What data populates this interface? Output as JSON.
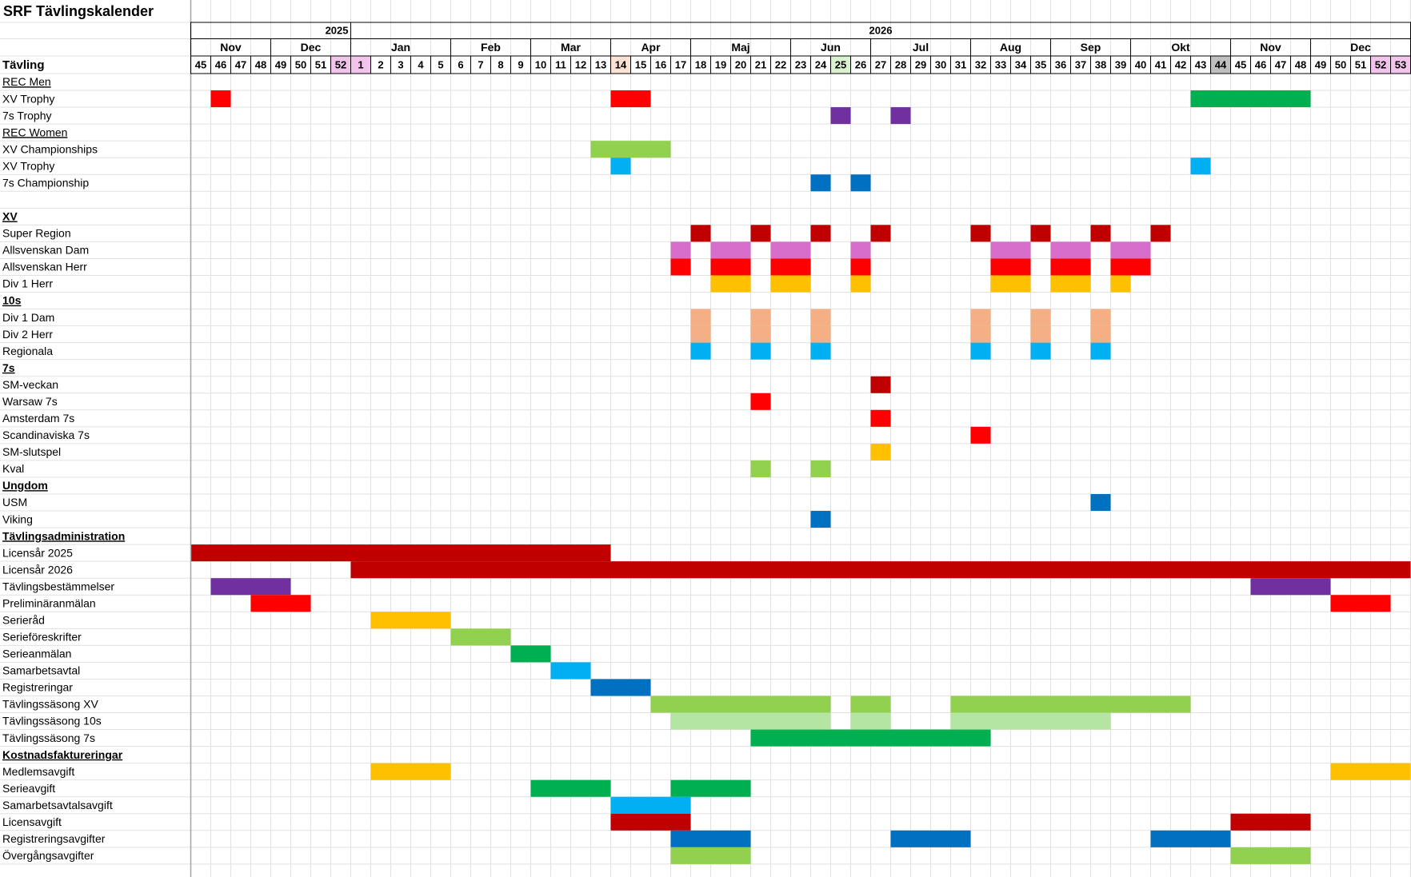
{
  "title": "SRF Tävlingskalender",
  "header_label": "Tävling",
  "years": [
    {
      "label": "2025",
      "span": 8,
      "align": "right"
    },
    {
      "label": "2026",
      "span": 53,
      "align": "center"
    }
  ],
  "months": [
    {
      "label": "Nov",
      "span": 4
    },
    {
      "label": "Dec",
      "span": 4
    },
    {
      "label": "Jan",
      "span": 5
    },
    {
      "label": "Feb",
      "span": 4
    },
    {
      "label": "Mar",
      "span": 4
    },
    {
      "label": "Apr",
      "span": 4
    },
    {
      "label": "Maj",
      "span": 5
    },
    {
      "label": "Jun",
      "span": 4
    },
    {
      "label": "Jul",
      "span": 5
    },
    {
      "label": "Aug",
      "span": 4
    },
    {
      "label": "Sep",
      "span": 4
    },
    {
      "label": "Okt",
      "span": 5
    },
    {
      "label": "Nov",
      "span": 4
    },
    {
      "label": "Dec",
      "span": 5
    }
  ],
  "weeks": [
    45,
    46,
    47,
    48,
    49,
    50,
    51,
    52,
    1,
    2,
    3,
    4,
    5,
    6,
    7,
    8,
    9,
    10,
    11,
    12,
    13,
    14,
    15,
    16,
    17,
    18,
    19,
    20,
    21,
    22,
    23,
    24,
    25,
    26,
    27,
    28,
    29,
    30,
    31,
    32,
    33,
    34,
    35,
    36,
    37,
    38,
    39,
    40,
    41,
    42,
    43,
    44,
    45,
    46,
    47,
    48,
    49,
    50,
    51,
    52,
    53
  ],
  "week_highlights": [
    {
      "index": 7,
      "color": "#f2c4ec"
    },
    {
      "index": 8,
      "color": "#f2c4ec"
    },
    {
      "index": 21,
      "color": "#fbe2d5"
    },
    {
      "index": 32,
      "color": "#daf2d0"
    },
    {
      "index": 51,
      "color": "#bfbfbf"
    },
    {
      "index": 59,
      "color": "#f2c4ec"
    },
    {
      "index": 60,
      "color": "#f2c4ec"
    }
  ],
  "rows": [
    {
      "label": "REC Men",
      "style": "link"
    },
    {
      "label": "XV Trophy",
      "bars": [
        {
          "from": 1,
          "to": 1,
          "color": "#ff0000"
        },
        {
          "from": 21,
          "to": 22,
          "color": "#ff0000"
        },
        {
          "from": 50,
          "to": 55,
          "color": "#00b050"
        }
      ]
    },
    {
      "label": "7s Trophy",
      "bars": [
        {
          "from": 32,
          "to": 32,
          "color": "#7030a0"
        },
        {
          "from": 35,
          "to": 35,
          "color": "#7030a0"
        }
      ]
    },
    {
      "label": "REC Women",
      "style": "link"
    },
    {
      "label": "XV Championships",
      "bars": [
        {
          "from": 20,
          "to": 23,
          "color": "#92d050"
        }
      ]
    },
    {
      "label": "XV Trophy",
      "bars": [
        {
          "from": 21,
          "to": 21,
          "color": "#00b0f0"
        },
        {
          "from": 50,
          "to": 50,
          "color": "#00b0f0"
        }
      ]
    },
    {
      "label": "7s Championship",
      "bars": [
        {
          "from": 31,
          "to": 31,
          "color": "#0070c0"
        },
        {
          "from": 33,
          "to": 33,
          "color": "#0070c0"
        }
      ]
    },
    {},
    {
      "label": "XV",
      "style": "section"
    },
    {
      "label": "Super Region",
      "bars": [
        {
          "from": 25,
          "to": 25,
          "color": "#c00000"
        },
        {
          "from": 28,
          "to": 28,
          "color": "#c00000"
        },
        {
          "from": 31,
          "to": 31,
          "color": "#c00000"
        },
        {
          "from": 34,
          "to": 34,
          "color": "#c00000"
        },
        {
          "from": 39,
          "to": 39,
          "color": "#c00000"
        },
        {
          "from": 42,
          "to": 42,
          "color": "#c00000"
        },
        {
          "from": 45,
          "to": 45,
          "color": "#c00000"
        },
        {
          "from": 48,
          "to": 48,
          "color": "#c00000"
        }
      ]
    },
    {
      "label": "Allsvenskan Dam",
      "bars": [
        {
          "from": 24,
          "to": 24,
          "color": "#d86ecc"
        },
        {
          "from": 26,
          "to": 27,
          "color": "#d86ecc"
        },
        {
          "from": 29,
          "to": 30,
          "color": "#d86ecc"
        },
        {
          "from": 33,
          "to": 33,
          "color": "#d86ecc"
        },
        {
          "from": 40,
          "to": 41,
          "color": "#d86ecc"
        },
        {
          "from": 43,
          "to": 44,
          "color": "#d86ecc"
        },
        {
          "from": 46,
          "to": 47,
          "color": "#d86ecc"
        }
      ]
    },
    {
      "label": "Allsvenskan Herr",
      "bars": [
        {
          "from": 24,
          "to": 24,
          "color": "#ff0000"
        },
        {
          "from": 26,
          "to": 27,
          "color": "#ff0000"
        },
        {
          "from": 29,
          "to": 30,
          "color": "#ff0000"
        },
        {
          "from": 33,
          "to": 33,
          "color": "#ff0000"
        },
        {
          "from": 40,
          "to": 41,
          "color": "#ff0000"
        },
        {
          "from": 43,
          "to": 44,
          "color": "#ff0000"
        },
        {
          "from": 46,
          "to": 47,
          "color": "#ff0000"
        }
      ]
    },
    {
      "label": "Div 1 Herr",
      "bars": [
        {
          "from": 26,
          "to": 27,
          "color": "#ffc000"
        },
        {
          "from": 29,
          "to": 30,
          "color": "#ffc000"
        },
        {
          "from": 33,
          "to": 33,
          "color": "#ffc000"
        },
        {
          "from": 40,
          "to": 41,
          "color": "#ffc000"
        },
        {
          "from": 43,
          "to": 44,
          "color": "#ffc000"
        },
        {
          "from": 46,
          "to": 46,
          "color": "#ffc000"
        }
      ]
    },
    {
      "label": "10s",
      "style": "section"
    },
    {
      "label": "Div 1 Dam",
      "bars": [
        {
          "from": 25,
          "to": 25,
          "color": "#f4b084"
        },
        {
          "from": 28,
          "to": 28,
          "color": "#f4b084"
        },
        {
          "from": 31,
          "to": 31,
          "color": "#f4b084"
        },
        {
          "from": 39,
          "to": 39,
          "color": "#f4b084"
        },
        {
          "from": 42,
          "to": 42,
          "color": "#f4b084"
        },
        {
          "from": 45,
          "to": 45,
          "color": "#f4b084"
        }
      ]
    },
    {
      "label": "Div 2 Herr",
      "bars": [
        {
          "from": 25,
          "to": 25,
          "color": "#f4b084"
        },
        {
          "from": 28,
          "to": 28,
          "color": "#f4b084"
        },
        {
          "from": 31,
          "to": 31,
          "color": "#f4b084"
        },
        {
          "from": 39,
          "to": 39,
          "color": "#f4b084"
        },
        {
          "from": 42,
          "to": 42,
          "color": "#f4b084"
        },
        {
          "from": 45,
          "to": 45,
          "color": "#f4b084"
        }
      ]
    },
    {
      "label": "Regionala",
      "bars": [
        {
          "from": 25,
          "to": 25,
          "color": "#00b0f0"
        },
        {
          "from": 28,
          "to": 28,
          "color": "#00b0f0"
        },
        {
          "from": 31,
          "to": 31,
          "color": "#00b0f0"
        },
        {
          "from": 39,
          "to": 39,
          "color": "#00b0f0"
        },
        {
          "from": 42,
          "to": 42,
          "color": "#00b0f0"
        },
        {
          "from": 45,
          "to": 45,
          "color": "#00b0f0"
        }
      ]
    },
    {
      "label": "7s",
      "style": "section"
    },
    {
      "label": "SM-veckan",
      "bars": [
        {
          "from": 34,
          "to": 34,
          "color": "#c00000"
        }
      ]
    },
    {
      "label": "Warsaw 7s",
      "bars": [
        {
          "from": 28,
          "to": 28,
          "color": "#ff0000"
        }
      ]
    },
    {
      "label": "Amsterdam 7s",
      "bars": [
        {
          "from": 34,
          "to": 34,
          "color": "#ff0000"
        }
      ]
    },
    {
      "label": "Scandinaviska 7s",
      "bars": [
        {
          "from": 39,
          "to": 39,
          "color": "#ff0000"
        }
      ]
    },
    {
      "label": "SM-slutspel",
      "bars": [
        {
          "from": 34,
          "to": 34,
          "color": "#ffc000"
        }
      ]
    },
    {
      "label": "Kval",
      "bars": [
        {
          "from": 28,
          "to": 28,
          "color": "#92d050"
        },
        {
          "from": 31,
          "to": 31,
          "color": "#92d050"
        }
      ]
    },
    {
      "label": "Ungdom",
      "style": "section"
    },
    {
      "label": "USM",
      "bars": [
        {
          "from": 45,
          "to": 45,
          "color": "#0070c0"
        }
      ]
    },
    {
      "label": "Viking",
      "bars": [
        {
          "from": 31,
          "to": 31,
          "color": "#0070c0"
        }
      ]
    },
    {
      "label": "Tävlingsadministration",
      "style": "section"
    },
    {
      "label": "Licensår 2025",
      "bars": [
        {
          "from": 0,
          "to": 20,
          "color": "#c00000"
        }
      ]
    },
    {
      "label": "Licensår 2026",
      "bars": [
        {
          "from": 8,
          "to": 60,
          "color": "#c00000"
        }
      ]
    },
    {
      "label": "Tävlingsbestämmelser",
      "bars": [
        {
          "from": 1,
          "to": 4,
          "color": "#7030a0"
        },
        {
          "from": 53,
          "to": 56,
          "color": "#7030a0"
        }
      ]
    },
    {
      "label": "Preliminäranmälan",
      "bars": [
        {
          "from": 3,
          "to": 5,
          "color": "#ff0000"
        },
        {
          "from": 57,
          "to": 59,
          "color": "#ff0000"
        }
      ]
    },
    {
      "label": "Serieråd",
      "bars": [
        {
          "from": 9,
          "to": 12,
          "color": "#ffc000"
        }
      ]
    },
    {
      "label": "Serieföreskrifter",
      "bars": [
        {
          "from": 13,
          "to": 15,
          "color": "#92d050"
        }
      ]
    },
    {
      "label": "Serieanmälan",
      "bars": [
        {
          "from": 16,
          "to": 17,
          "color": "#00b050"
        }
      ]
    },
    {
      "label": "Samarbetsavtal",
      "bars": [
        {
          "from": 18,
          "to": 19,
          "color": "#00b0f0"
        }
      ]
    },
    {
      "label": "Registreringar",
      "bars": [
        {
          "from": 20,
          "to": 22,
          "color": "#0070c0"
        }
      ]
    },
    {
      "label": "Tävlingssäsong XV",
      "bars": [
        {
          "from": 23,
          "to": 31,
          "color": "#92d050"
        },
        {
          "from": 33,
          "to": 34,
          "color": "#92d050"
        },
        {
          "from": 38,
          "to": 49,
          "color": "#92d050"
        }
      ]
    },
    {
      "label": "Tävlingssäsong 10s",
      "bars": [
        {
          "from": 24,
          "to": 31,
          "color": "#b4e5a2"
        },
        {
          "from": 33,
          "to": 34,
          "color": "#b4e5a2"
        },
        {
          "from": 38,
          "to": 45,
          "color": "#b4e5a2"
        }
      ]
    },
    {
      "label": "Tävlingssäsong 7s",
      "bars": [
        {
          "from": 28,
          "to": 39,
          "color": "#00b050"
        }
      ]
    },
    {
      "label": "Kostnadsfaktureringar",
      "style": "section"
    },
    {
      "label": "Medlemsavgift",
      "bars": [
        {
          "from": 9,
          "to": 12,
          "color": "#ffc000"
        },
        {
          "from": 57,
          "to": 60,
          "color": "#ffc000"
        }
      ]
    },
    {
      "label": "Serieavgift",
      "bars": [
        {
          "from": 17,
          "to": 20,
          "color": "#00b050"
        },
        {
          "from": 24,
          "to": 27,
          "color": "#00b050"
        }
      ]
    },
    {
      "label": "Samarbetsavtalsavgift",
      "bars": [
        {
          "from": 21,
          "to": 24,
          "color": "#00b0f0"
        }
      ]
    },
    {
      "label": "Licensavgift",
      "bars": [
        {
          "from": 21,
          "to": 24,
          "color": "#c00000"
        },
        {
          "from": 52,
          "to": 55,
          "color": "#c00000"
        }
      ]
    },
    {
      "label": "Registreringsavgifter",
      "bars": [
        {
          "from": 24,
          "to": 27,
          "color": "#0070c0"
        },
        {
          "from": 35,
          "to": 38,
          "color": "#0070c0"
        },
        {
          "from": 48,
          "to": 51,
          "color": "#0070c0"
        }
      ]
    },
    {
      "label": "Övergångsavgifter",
      "bars": [
        {
          "from": 24,
          "to": 27,
          "color": "#92d050"
        },
        {
          "from": 52,
          "to": 55,
          "color": "#92d050"
        }
      ]
    }
  ]
}
